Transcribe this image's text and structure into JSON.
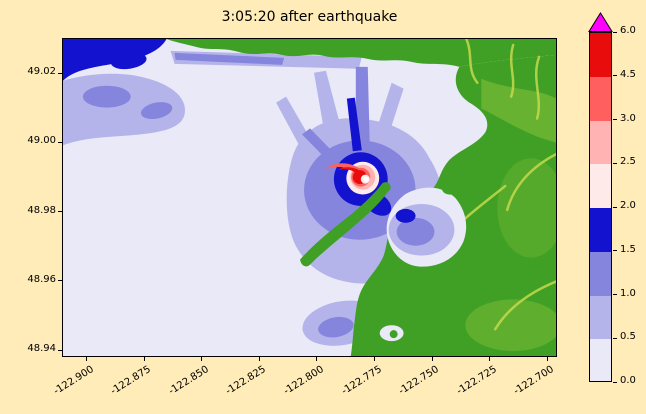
{
  "figure": {
    "background": "#ffecb8"
  },
  "chart_data": {
    "type": "heatmap",
    "title": "3:05:20 after earthquake",
    "xlabel": "",
    "ylabel": "",
    "x_ticks": [
      "-122.900",
      "-122.875",
      "-122.850",
      "-122.825",
      "-122.800",
      "-122.775",
      "-122.750",
      "-122.725",
      "-122.700"
    ],
    "y_ticks": [
      "49.02",
      "49.00",
      "48.98",
      "48.96",
      "48.94"
    ],
    "xlim": [
      -122.9108,
      -122.6957
    ],
    "ylim": [
      48.938,
      49.0302
    ],
    "x_tick_rotation_deg": 32,
    "grid": false,
    "colorbar": {
      "orientation": "vertical",
      "position": "right",
      "ticks": [
        "0.0",
        "0.5",
        "1.0",
        "1.5",
        "2.0",
        "2.5",
        "3.0",
        "4.5",
        "6.0"
      ],
      "levels": [
        0.0,
        0.5,
        1.0,
        1.5,
        2.0,
        2.5,
        3.0,
        4.5,
        6.0
      ],
      "colors": [
        "#e9e9f8",
        "#b4b4ea",
        "#8585de",
        "#1212cf",
        "#ffeaea",
        "#ffb3b3",
        "#ff5f5f",
        "#e80c0c"
      ],
      "over_color": "#ff00ff",
      "extend": "max"
    },
    "palette": {
      "water_calm": "#e9e9f8",
      "wave_0_5_1": "#b4b4ea",
      "wave_1_1_5": "#8585de",
      "wave_1_5_2": "#1212cf",
      "wave_2_2_5": "#ffeaea",
      "wave_2_5_3": "#ffb3b3",
      "wave_3_4_5": "#ff5f5f",
      "wave_4_5_6": "#e80c0c",
      "over": "#ff00ff",
      "land": "#3fa025",
      "land_light": "#9ac83e",
      "river": "#c6d94b",
      "white_core": "#ffffff"
    },
    "visible_features": [
      {
        "feature": "wave source swirl (red/white crescent core, value 4.5-6.0)",
        "lon": -122.78,
        "lat": 48.99
      },
      {
        "feature": "strong blue ring (1.5-2.0) surrounding source with radiating streaks toward north shore"
      },
      {
        "feature": "lavender wave field (0.5-1.5) spreading around source and into harbor to the southeast"
      },
      {
        "feature": "dark blue patch (1.5-2.0) in northwest corner with lavender band below it"
      },
      {
        "feature": "green land: north shore strip along top, large mainland on east/right, narrow spit reaching toward source, enclosed harbor"
      },
      {
        "feature": "calm water (0-0.5) pale lavender over most of the bay"
      }
    ]
  }
}
